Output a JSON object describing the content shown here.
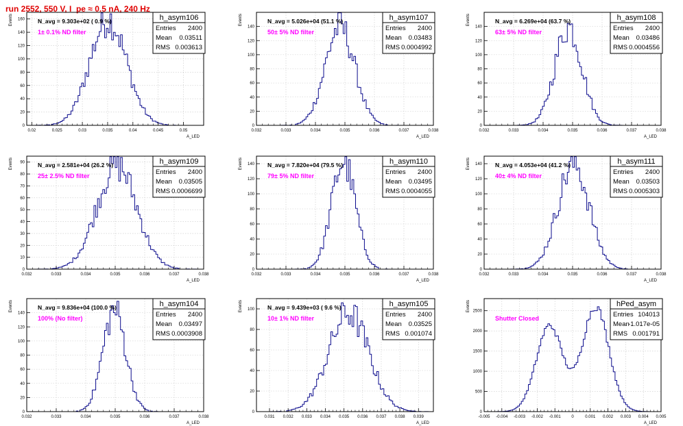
{
  "run_title": "run 2552,   550 V, I_pe ≈ 0.5 nA, 240 Hz",
  "colors": {
    "histogram": "#0a0a8c",
    "title": "#e00000",
    "annotation": "#ff00ff",
    "frame": "#000000",
    "grid": "#c8c8c8"
  },
  "chart_data": [
    {
      "type": "histogram",
      "name": "h_asym106",
      "ylabel": "Events",
      "xlabel": "A_LED",
      "avg_label": "N_avg = 9.303e+02 ( 0.9 %)",
      "note": "1± 0.1% ND filter",
      "stats": {
        "entries": "2400",
        "mean": "0.03511",
        "rms": "0.003613"
      },
      "xlim": [
        0.019,
        0.054
      ],
      "ylim": [
        0,
        170
      ],
      "xticks": [
        0.02,
        0.025,
        0.03,
        0.035,
        0.04,
        0.045,
        0.05
      ],
      "xtick_labels": [
        "0.02",
        "0.025",
        "0.03",
        "0.035",
        "0.04",
        "0.045",
        "0.05"
      ],
      "yticks": [
        0,
        20,
        40,
        60,
        80,
        100,
        120,
        140,
        160
      ],
      "dist": {
        "mean": 0.03511,
        "rms": 0.003613,
        "peak": 160
      },
      "grid": true
    },
    {
      "type": "histogram",
      "name": "h_asym107",
      "ylabel": "Events",
      "xlabel": "A_LED",
      "avg_label": "N_avg = 5.026e+04 (51.1 %)",
      "note": "50± 5% ND filter",
      "stats": {
        "entries": "2400",
        "mean": "0.03483",
        "rms": "0.0004992"
      },
      "xlim": [
        0.032,
        0.038
      ],
      "ylim": [
        0,
        160
      ],
      "xticks": [
        0.032,
        0.033,
        0.034,
        0.035,
        0.036,
        0.037,
        0.038
      ],
      "xtick_labels": [
        "0.032",
        "0.033",
        "0.034",
        "0.035",
        "0.036",
        "0.037",
        "0.038"
      ],
      "yticks": [
        0,
        20,
        40,
        60,
        80,
        100,
        120,
        140
      ],
      "dist": {
        "mean": 0.03483,
        "rms": 0.0004992,
        "peak": 140
      },
      "grid": true
    },
    {
      "type": "histogram",
      "name": "h_asym108",
      "ylabel": "Events",
      "xlabel": "A_LED",
      "avg_label": "N_avg = 6.269e+04 (63.7 %)",
      "note": "63± 5% ND filter",
      "stats": {
        "entries": "2400",
        "mean": "0.03486",
        "rms": "0.0004556"
      },
      "xlim": [
        0.032,
        0.038
      ],
      "ylim": [
        0,
        160
      ],
      "xticks": [
        0.032,
        0.033,
        0.034,
        0.035,
        0.036,
        0.037,
        0.038
      ],
      "xtick_labels": [
        "0.032",
        "0.033",
        "0.034",
        "0.035",
        "0.036",
        "0.037",
        "0.038"
      ],
      "yticks": [
        0,
        20,
        40,
        60,
        80,
        100,
        120,
        140
      ],
      "dist": {
        "mean": 0.03486,
        "rms": 0.0004556,
        "peak": 140
      },
      "grid": true
    },
    {
      "type": "histogram",
      "name": "h_asym109",
      "ylabel": "Events",
      "xlabel": "A_LED",
      "avg_label": "N_avg = 2.581e+04 (26.2 %)",
      "note": "25± 2.5% ND filter",
      "stats": {
        "entries": "2400",
        "mean": "0.03505",
        "rms": "0.0006699"
      },
      "xlim": [
        0.032,
        0.038
      ],
      "ylim": [
        0,
        95
      ],
      "xticks": [
        0.032,
        0.033,
        0.034,
        0.035,
        0.036,
        0.037,
        0.038
      ],
      "xtick_labels": [
        "0.032",
        "0.033",
        "0.034",
        "0.035",
        "0.036",
        "0.037",
        "0.038"
      ],
      "yticks": [
        0,
        10,
        20,
        30,
        40,
        50,
        60,
        70,
        80,
        90
      ],
      "dist": {
        "mean": 0.03505,
        "rms": 0.0006699,
        "peak": 88
      },
      "grid": true
    },
    {
      "type": "histogram",
      "name": "h_asym110",
      "ylabel": "Events",
      "xlabel": "A_LED",
      "avg_label": "N_avg = 7.820e+04 (79.5 %)",
      "note": "79± 5% ND filter",
      "stats": {
        "entries": "2400",
        "mean": "0.03495",
        "rms": "0.0004055"
      },
      "xlim": [
        0.032,
        0.038
      ],
      "ylim": [
        0,
        150
      ],
      "xticks": [
        0.032,
        0.033,
        0.034,
        0.035,
        0.036,
        0.037,
        0.038
      ],
      "xtick_labels": [
        "0.032",
        "0.033",
        "0.034",
        "0.035",
        "0.036",
        "0.037",
        "0.038"
      ],
      "yticks": [
        0,
        20,
        40,
        60,
        80,
        100,
        120,
        140
      ],
      "dist": {
        "mean": 0.03495,
        "rms": 0.0004055,
        "peak": 143
      },
      "grid": true
    },
    {
      "type": "histogram",
      "name": "h_asym111",
      "ylabel": "Events",
      "xlabel": "A_LED",
      "avg_label": "N_avg = 4.053e+04 (41.2 %)",
      "note": "40± 4% ND filter",
      "stats": {
        "entries": "2400",
        "mean": "0.03503",
        "rms": "0.0005303"
      },
      "xlim": [
        0.032,
        0.038
      ],
      "ylim": [
        0,
        150
      ],
      "xticks": [
        0.032,
        0.033,
        0.034,
        0.035,
        0.036,
        0.037,
        0.038
      ],
      "xtick_labels": [
        "0.032",
        "0.033",
        "0.034",
        "0.035",
        "0.036",
        "0.037",
        "0.038"
      ],
      "yticks": [
        0,
        20,
        40,
        60,
        80,
        100,
        120,
        140
      ],
      "dist": {
        "mean": 0.03503,
        "rms": 0.0005303,
        "peak": 140
      },
      "grid": true
    },
    {
      "type": "histogram",
      "name": "h_asym104",
      "ylabel": "Events",
      "xlabel": "A_LED",
      "avg_label": "N_avg = 9.836e+04 (100.0 %)",
      "note": "100% (No filter)",
      "stats": {
        "entries": "2400",
        "mean": "0.03497",
        "rms": "0.0003908"
      },
      "xlim": [
        0.032,
        0.038
      ],
      "ylim": [
        0,
        160
      ],
      "xticks": [
        0.032,
        0.033,
        0.034,
        0.035,
        0.036,
        0.037,
        0.038
      ],
      "xtick_labels": [
        "0.032",
        "0.033",
        "0.034",
        "0.035",
        "0.036",
        "0.037",
        "0.038"
      ],
      "yticks": [
        0,
        20,
        40,
        60,
        80,
        100,
        120,
        140
      ],
      "dist": {
        "mean": 0.03497,
        "rms": 0.0003908,
        "peak": 143
      },
      "grid": true
    },
    {
      "type": "histogram",
      "name": "h_asym105",
      "ylabel": "Events",
      "xlabel": "A_LED",
      "avg_label": "N_avg = 9.439e+03 ( 9.6 %)",
      "note": "10± 1% ND filter",
      "stats": {
        "entries": "2400",
        "mean": "0.03525",
        "rms": "0.001074"
      },
      "xlim": [
        0.0303,
        0.0398
      ],
      "ylim": [
        0,
        110
      ],
      "xticks": [
        0.031,
        0.032,
        0.033,
        0.034,
        0.035,
        0.036,
        0.037,
        0.038,
        0.039
      ],
      "xtick_labels": [
        "0.031",
        "0.032",
        "0.033",
        "0.034",
        "0.035",
        "0.036",
        "0.037",
        "0.038",
        "0.039"
      ],
      "yticks": [
        0,
        20,
        40,
        60,
        80,
        100
      ],
      "dist": {
        "mean": 0.03525,
        "rms": 0.001074,
        "peak": 96
      },
      "grid": true
    },
    {
      "type": "histogram",
      "name": "hPed_asym",
      "ylabel": "Events",
      "xlabel": "A_LED",
      "avg_label": "",
      "note": "Shutter Closed",
      "stats": {
        "entries": "104013",
        "mean": "-1.017e-05",
        "rms": "0.001791"
      },
      "xlim": [
        -0.005,
        0.005
      ],
      "ylim": [
        0,
        2800
      ],
      "xticks": [
        -0.005,
        -0.004,
        -0.003,
        -0.002,
        -0.001,
        0,
        0.001,
        0.002,
        0.003,
        0.004,
        0.005
      ],
      "xtick_labels": [
        "-0.005",
        "-0.004",
        "-0.003",
        "-0.002",
        "-0.001",
        "0",
        "0.001",
        "0.002",
        "0.003",
        "0.004",
        "0.005"
      ],
      "yticks": [
        0,
        500,
        1000,
        1500,
        2000,
        2500
      ],
      "dist": {
        "bimodal": true,
        "centers": [
          -0.0013,
          0.0013
        ],
        "sigma": 0.00075,
        "peak": 2600,
        "dip": 480
      },
      "grid": true
    }
  ]
}
